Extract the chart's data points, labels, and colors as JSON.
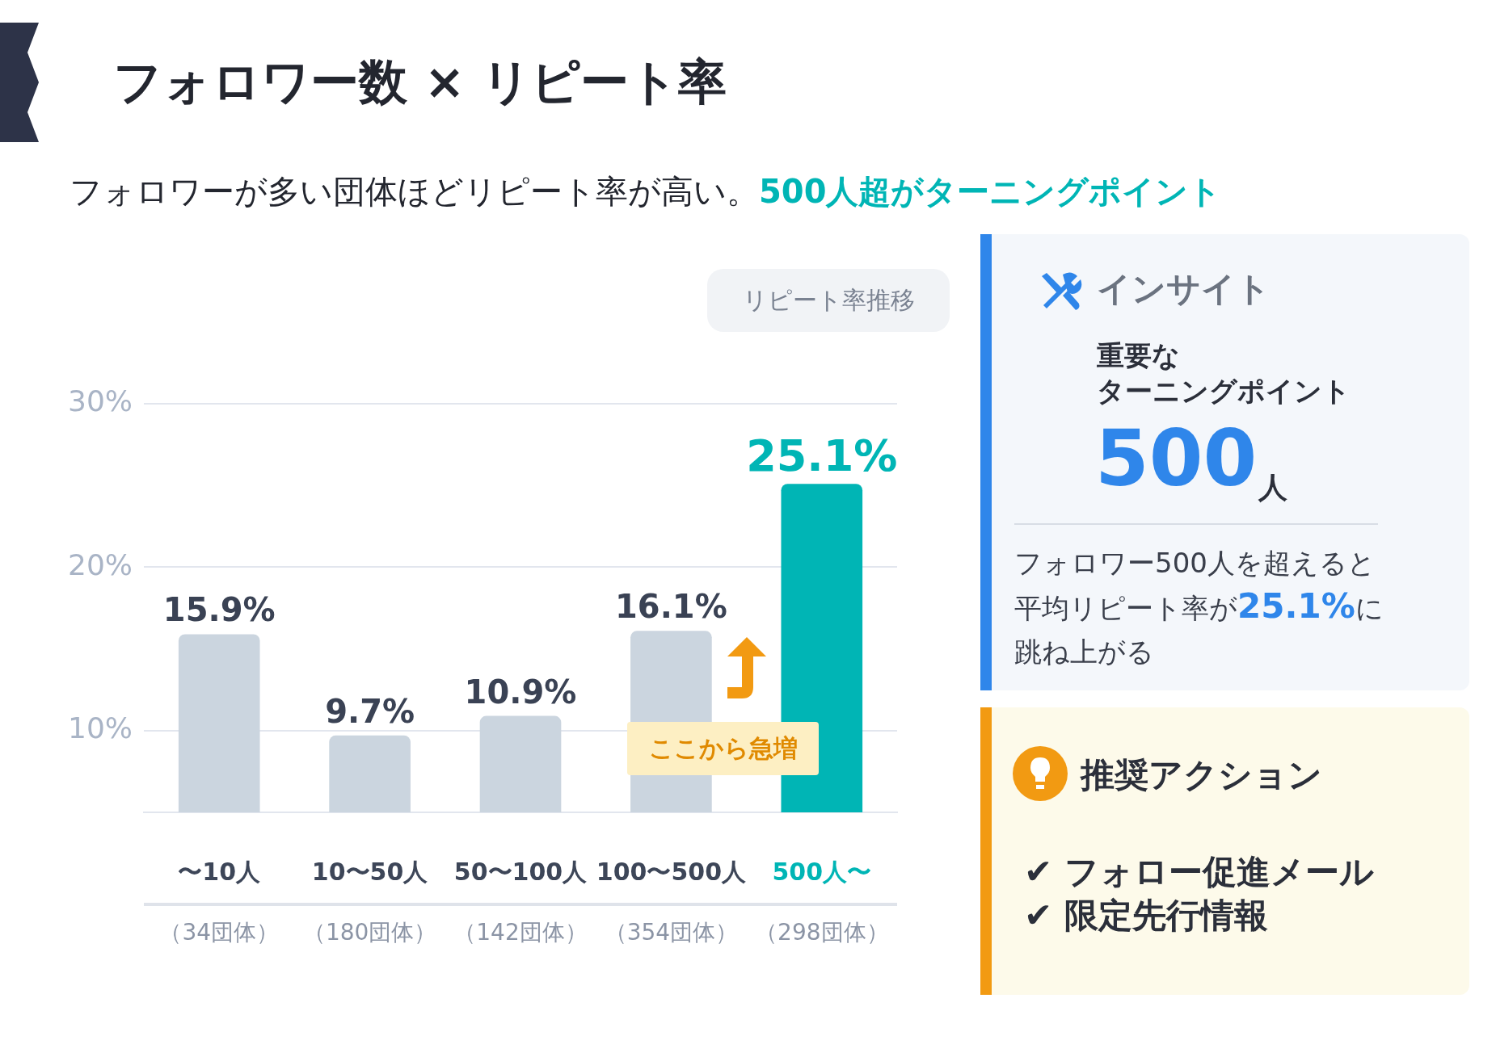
{
  "chart_data": {
    "type": "bar",
    "title": "フォロワー数 × リピート率",
    "subtitle": "フォロワーが多い団体ほどリピート率が高い。",
    "categories": [
      "〜10人",
      "10〜50人",
      "50〜100人",
      "100〜500人",
      "500人〜"
    ],
    "values": [
      15.9,
      9.7,
      10.9,
      16.1,
      25.1
    ],
    "colors": [
      "#cbd5df",
      "#cbd5df",
      "#cbd5df",
      "#cbd5df",
      "#00b5b5"
    ],
    "value_labels": [
      "15.9%",
      "9.7%",
      "10.9%",
      "16.1%",
      "25.1%"
    ],
    "ylim": [
      5,
      30
    ],
    "yticks": [
      {
        "value": 10,
        "label": "10%"
      },
      {
        "value": 20,
        "label": "20%"
      },
      {
        "value": 30,
        "label": "30%"
      }
    ],
    "grid": "y",
    "legend": false,
    "annotations": [
      "リピート率推移",
      "ここから急増",
      "（34団体）",
      "（180団体）",
      "（142団体）",
      "（354団体）",
      "（298団体）",
      "500人超がターニングポイント",
      "インサイト",
      "重要な",
      "500",
      "人",
      "フォロワー500人を超えると平均リピート率が",
      "25.1%",
      "に跳ね上がる",
      "推奨アクション",
      "✔ フォロー促進メール",
      "✔ 限定先行情報",
      "ターニングポイント"
    ]
  }
}
